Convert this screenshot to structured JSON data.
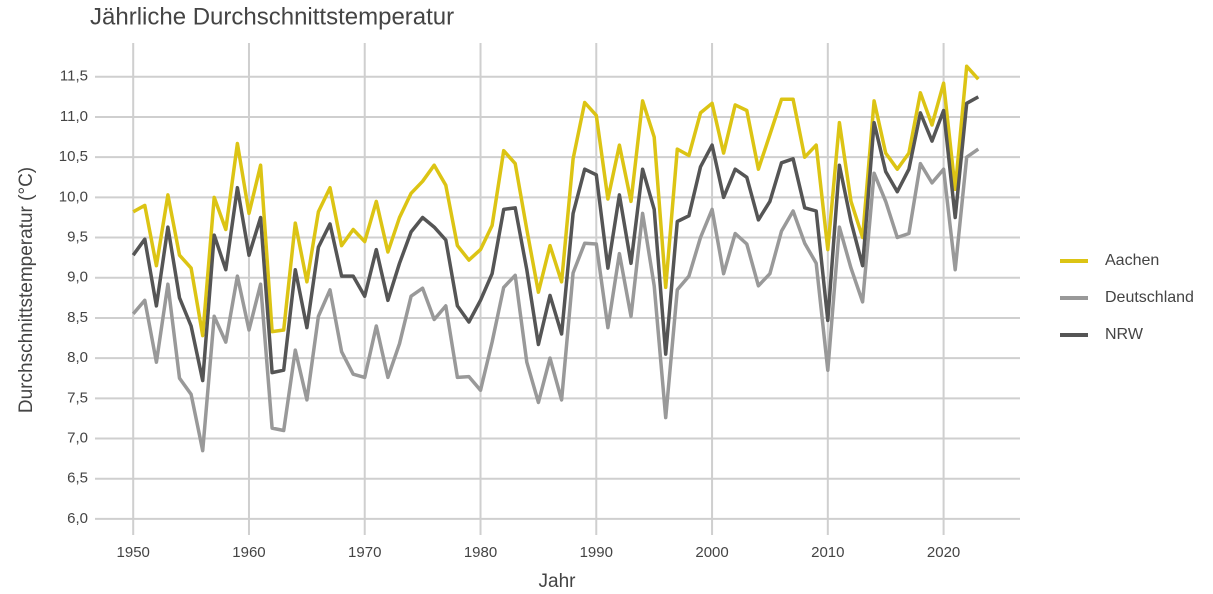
{
  "chart_data": {
    "type": "line",
    "title": "Jährliche Durchschnittstemperatur",
    "x_label": "Jahr",
    "y_label": "Durchschnittstemperatur (°C)",
    "x": [
      1950,
      1951,
      1952,
      1953,
      1954,
      1955,
      1956,
      1957,
      1958,
      1959,
      1960,
      1961,
      1962,
      1963,
      1964,
      1965,
      1966,
      1967,
      1968,
      1969,
      1970,
      1971,
      1972,
      1973,
      1974,
      1975,
      1976,
      1977,
      1978,
      1979,
      1980,
      1981,
      1982,
      1983,
      1984,
      1985,
      1986,
      1987,
      1988,
      1989,
      1990,
      1991,
      1992,
      1993,
      1994,
      1995,
      1996,
      1997,
      1998,
      1999,
      2000,
      2001,
      2002,
      2003,
      2004,
      2005,
      2006,
      2007,
      2008,
      2009,
      2010,
      2011,
      2012,
      2013,
      2014,
      2015,
      2016,
      2017,
      2018,
      2019,
      2020,
      2021,
      2022,
      2023
    ],
    "series": [
      {
        "name": "Aachen",
        "color": "#dcc414",
        "values": [
          9.82,
          9.9,
          9.15,
          10.03,
          9.28,
          9.12,
          8.28,
          10.0,
          9.6,
          10.67,
          9.8,
          10.4,
          8.33,
          8.35,
          9.68,
          8.95,
          9.82,
          10.12,
          9.4,
          9.6,
          9.45,
          9.95,
          9.32,
          9.75,
          10.05,
          10.2,
          10.4,
          10.15,
          9.4,
          9.22,
          9.35,
          9.65,
          10.58,
          10.42,
          9.6,
          8.82,
          9.4,
          8.95,
          10.48,
          11.18,
          11.02,
          9.98,
          10.65,
          9.95,
          11.2,
          10.75,
          8.88,
          10.6,
          10.52,
          11.05,
          11.17,
          10.55,
          11.15,
          11.08,
          10.35,
          10.78,
          11.22,
          11.22,
          10.5,
          10.65,
          9.35,
          10.93,
          9.95,
          9.5,
          11.2,
          10.55,
          10.35,
          10.55,
          11.3,
          10.9,
          11.42,
          10.1,
          11.63,
          11.47
        ]
      },
      {
        "name": "Deutschland",
        "color": "#999999",
        "values": [
          8.55,
          8.72,
          7.95,
          8.92,
          7.75,
          7.55,
          6.85,
          8.52,
          8.2,
          9.02,
          8.35,
          8.92,
          7.13,
          7.1,
          8.1,
          7.48,
          8.52,
          8.85,
          8.08,
          7.8,
          7.76,
          8.4,
          7.76,
          8.18,
          8.77,
          8.87,
          8.48,
          8.65,
          7.76,
          7.77,
          7.6,
          8.2,
          8.88,
          9.03,
          7.95,
          7.45,
          8.0,
          7.48,
          9.06,
          9.43,
          9.42,
          8.38,
          9.3,
          8.52,
          9.8,
          8.9,
          7.26,
          8.85,
          9.02,
          9.5,
          9.85,
          9.05,
          9.55,
          9.42,
          8.9,
          9.05,
          9.58,
          9.83,
          9.43,
          9.18,
          7.85,
          9.63,
          9.12,
          8.7,
          10.3,
          9.95,
          9.5,
          9.55,
          10.42,
          10.18,
          10.35,
          9.1,
          10.5,
          10.6
        ]
      },
      {
        "name": "NRW",
        "color": "#555555",
        "values": [
          9.28,
          9.48,
          8.65,
          9.63,
          8.75,
          8.4,
          7.72,
          9.53,
          9.1,
          10.12,
          9.28,
          9.75,
          7.82,
          7.85,
          9.1,
          8.38,
          9.38,
          9.67,
          9.02,
          9.02,
          8.77,
          9.35,
          8.72,
          9.18,
          9.57,
          9.75,
          9.63,
          9.47,
          8.65,
          8.45,
          8.72,
          9.05,
          9.85,
          9.87,
          9.1,
          8.17,
          8.78,
          8.3,
          9.8,
          10.35,
          10.28,
          9.12,
          10.03,
          9.18,
          10.35,
          9.85,
          8.05,
          9.7,
          9.77,
          10.38,
          10.65,
          10.0,
          10.35,
          10.25,
          9.72,
          9.95,
          10.43,
          10.48,
          9.87,
          9.83,
          8.47,
          10.4,
          9.7,
          9.15,
          10.93,
          10.32,
          10.07,
          10.35,
          11.05,
          10.7,
          11.08,
          9.75,
          11.17,
          11.25
        ]
      }
    ],
    "xlim": [
      1946.7,
      2026.6
    ],
    "xticks": [
      1950,
      1960,
      1970,
      1980,
      1990,
      2000,
      2010,
      2020
    ],
    "ylim": [
      5.8,
      11.92
    ],
    "yticks": [
      {
        "value": 6,
        "label": "6,0"
      },
      {
        "value": 6.5,
        "label": "6,5"
      },
      {
        "value": 7,
        "label": "7,0"
      },
      {
        "value": 7.5,
        "label": "7,5"
      },
      {
        "value": 8,
        "label": "8,0"
      },
      {
        "value": 8.5,
        "label": "8,5"
      },
      {
        "value": 9,
        "label": "9,0"
      },
      {
        "value": 9.5,
        "label": "9,5"
      },
      {
        "value": 10,
        "label": "10,0"
      },
      {
        "value": 10.5,
        "label": "10,5"
      },
      {
        "value": 11,
        "label": "11,0"
      },
      {
        "value": 11.5,
        "label": "11,5"
      }
    ],
    "grid": true,
    "legend": "right"
  }
}
